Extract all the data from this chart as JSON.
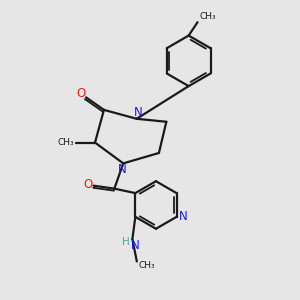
{
  "background_color": "#e6e6e6",
  "bond_color": "#1a1a1a",
  "nitrogen_color": "#1a1aee",
  "oxygen_color": "#ee1a1a",
  "hydrogen_color": "#3aada0",
  "figsize": [
    3.0,
    3.0
  ],
  "dpi": 100,
  "xlim": [
    0,
    10
  ],
  "ylim": [
    0,
    10
  ]
}
